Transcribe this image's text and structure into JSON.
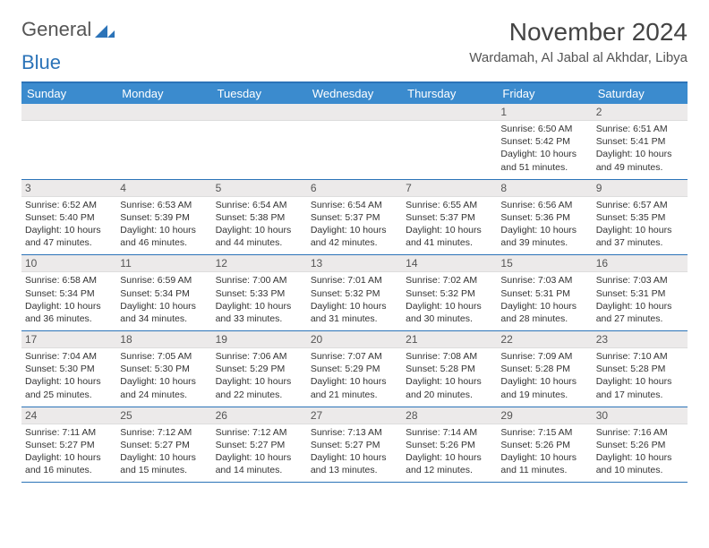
{
  "brand": {
    "part1": "General",
    "part2": "Blue",
    "color1": "#666666",
    "color2": "#2b73b8"
  },
  "title": "November 2024",
  "location": "Wardamah, Al Jabal al Akhdar, Libya",
  "dayNames": [
    "Sunday",
    "Monday",
    "Tuesday",
    "Wednesday",
    "Thursday",
    "Friday",
    "Saturday"
  ],
  "theme": {
    "header_bg": "#3b8bce",
    "border": "#2b73b8",
    "daynum_bg": "#eceaea"
  },
  "weeks": [
    [
      {
        "empty": true
      },
      {
        "empty": true
      },
      {
        "empty": true
      },
      {
        "empty": true
      },
      {
        "empty": true
      },
      {
        "day": "1",
        "sunrise": "6:50 AM",
        "sunset": "5:42 PM",
        "daylight": "10 hours and 51 minutes."
      },
      {
        "day": "2",
        "sunrise": "6:51 AM",
        "sunset": "5:41 PM",
        "daylight": "10 hours and 49 minutes."
      }
    ],
    [
      {
        "day": "3",
        "sunrise": "6:52 AM",
        "sunset": "5:40 PM",
        "daylight": "10 hours and 47 minutes."
      },
      {
        "day": "4",
        "sunrise": "6:53 AM",
        "sunset": "5:39 PM",
        "daylight": "10 hours and 46 minutes."
      },
      {
        "day": "5",
        "sunrise": "6:54 AM",
        "sunset": "5:38 PM",
        "daylight": "10 hours and 44 minutes."
      },
      {
        "day": "6",
        "sunrise": "6:54 AM",
        "sunset": "5:37 PM",
        "daylight": "10 hours and 42 minutes."
      },
      {
        "day": "7",
        "sunrise": "6:55 AM",
        "sunset": "5:37 PM",
        "daylight": "10 hours and 41 minutes."
      },
      {
        "day": "8",
        "sunrise": "6:56 AM",
        "sunset": "5:36 PM",
        "daylight": "10 hours and 39 minutes."
      },
      {
        "day": "9",
        "sunrise": "6:57 AM",
        "sunset": "5:35 PM",
        "daylight": "10 hours and 37 minutes."
      }
    ],
    [
      {
        "day": "10",
        "sunrise": "6:58 AM",
        "sunset": "5:34 PM",
        "daylight": "10 hours and 36 minutes."
      },
      {
        "day": "11",
        "sunrise": "6:59 AM",
        "sunset": "5:34 PM",
        "daylight": "10 hours and 34 minutes."
      },
      {
        "day": "12",
        "sunrise": "7:00 AM",
        "sunset": "5:33 PM",
        "daylight": "10 hours and 33 minutes."
      },
      {
        "day": "13",
        "sunrise": "7:01 AM",
        "sunset": "5:32 PM",
        "daylight": "10 hours and 31 minutes."
      },
      {
        "day": "14",
        "sunrise": "7:02 AM",
        "sunset": "5:32 PM",
        "daylight": "10 hours and 30 minutes."
      },
      {
        "day": "15",
        "sunrise": "7:03 AM",
        "sunset": "5:31 PM",
        "daylight": "10 hours and 28 minutes."
      },
      {
        "day": "16",
        "sunrise": "7:03 AM",
        "sunset": "5:31 PM",
        "daylight": "10 hours and 27 minutes."
      }
    ],
    [
      {
        "day": "17",
        "sunrise": "7:04 AM",
        "sunset": "5:30 PM",
        "daylight": "10 hours and 25 minutes."
      },
      {
        "day": "18",
        "sunrise": "7:05 AM",
        "sunset": "5:30 PM",
        "daylight": "10 hours and 24 minutes."
      },
      {
        "day": "19",
        "sunrise": "7:06 AM",
        "sunset": "5:29 PM",
        "daylight": "10 hours and 22 minutes."
      },
      {
        "day": "20",
        "sunrise": "7:07 AM",
        "sunset": "5:29 PM",
        "daylight": "10 hours and 21 minutes."
      },
      {
        "day": "21",
        "sunrise": "7:08 AM",
        "sunset": "5:28 PM",
        "daylight": "10 hours and 20 minutes."
      },
      {
        "day": "22",
        "sunrise": "7:09 AM",
        "sunset": "5:28 PM",
        "daylight": "10 hours and 19 minutes."
      },
      {
        "day": "23",
        "sunrise": "7:10 AM",
        "sunset": "5:28 PM",
        "daylight": "10 hours and 17 minutes."
      }
    ],
    [
      {
        "day": "24",
        "sunrise": "7:11 AM",
        "sunset": "5:27 PM",
        "daylight": "10 hours and 16 minutes."
      },
      {
        "day": "25",
        "sunrise": "7:12 AM",
        "sunset": "5:27 PM",
        "daylight": "10 hours and 15 minutes."
      },
      {
        "day": "26",
        "sunrise": "7:12 AM",
        "sunset": "5:27 PM",
        "daylight": "10 hours and 14 minutes."
      },
      {
        "day": "27",
        "sunrise": "7:13 AM",
        "sunset": "5:27 PM",
        "daylight": "10 hours and 13 minutes."
      },
      {
        "day": "28",
        "sunrise": "7:14 AM",
        "sunset": "5:26 PM",
        "daylight": "10 hours and 12 minutes."
      },
      {
        "day": "29",
        "sunrise": "7:15 AM",
        "sunset": "5:26 PM",
        "daylight": "10 hours and 11 minutes."
      },
      {
        "day": "30",
        "sunrise": "7:16 AM",
        "sunset": "5:26 PM",
        "daylight": "10 hours and 10 minutes."
      }
    ]
  ],
  "labels": {
    "sunrise": "Sunrise: ",
    "sunset": "Sunset: ",
    "daylight": "Daylight: "
  }
}
